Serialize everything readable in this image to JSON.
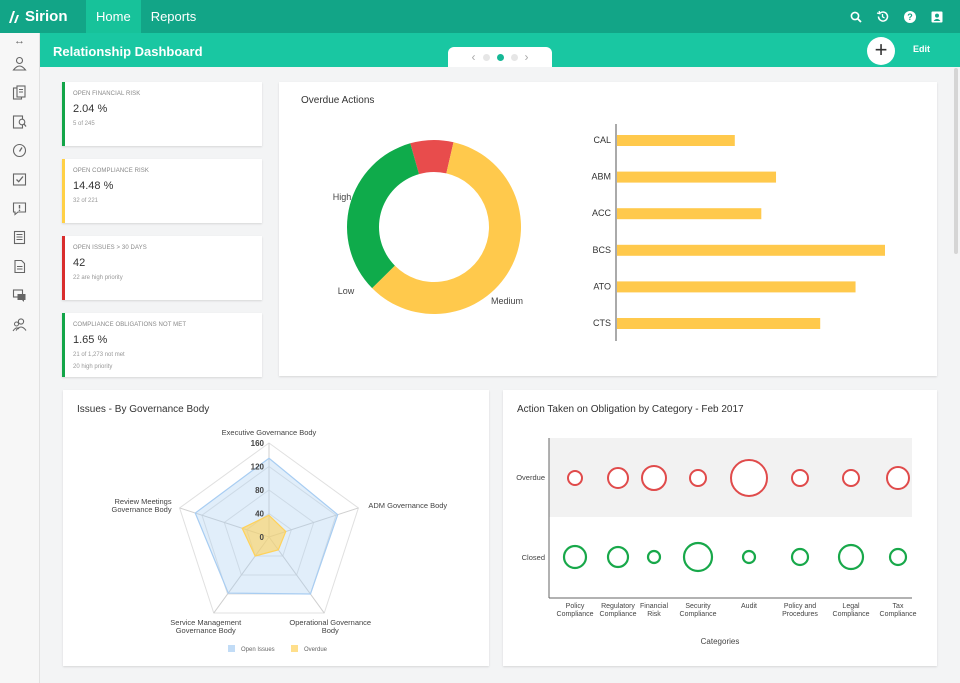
{
  "app": {
    "name": "Sirion"
  },
  "nav": {
    "tabs": [
      {
        "label": "Home"
      },
      {
        "label": "Reports"
      }
    ]
  },
  "header": {
    "title": "Relationship Dashboard",
    "edit_label": "Edit",
    "add_label": "+"
  },
  "topbar_icons": [
    "search-icon",
    "history-icon",
    "help-icon",
    "user-profile-icon"
  ],
  "sidebar_icons": [
    "user-icon",
    "contracts-icon",
    "search-document-icon",
    "speedometer-icon",
    "checklist-icon",
    "alert-icon",
    "invoice-icon",
    "document-icon",
    "chat-icon",
    "people-icon"
  ],
  "kpis": [
    {
      "label": "OPEN FINANCIAL RISK",
      "value": "2.04 %",
      "sub": "5 of 245",
      "sub2": "",
      "color": "#12a548"
    },
    {
      "label": "OPEN COMPLIANCE RISK",
      "value": "14.48 %",
      "sub": "32 of 221",
      "sub2": "",
      "color": "#ffd045"
    },
    {
      "label": "OPEN ISSUES > 30 DAYS",
      "value": "42",
      "sub": "22 are high priority",
      "sub2": "",
      "color": "#d92d2d"
    },
    {
      "label": "COMPLIANCE OBLIGATIONS NOT MET",
      "value": "1.65 %",
      "sub": "21 of 1,273 not met",
      "sub2": "20 high priority",
      "color": "#12a548"
    }
  ],
  "overdue": {
    "title": "Overdue Actions",
    "donut": {
      "labels": [
        "High",
        "Medium",
        "Low"
      ],
      "values": [
        8,
        59,
        33
      ],
      "colors": [
        "#e84c4c",
        "#ffc94c",
        "#0fab4b"
      ]
    },
    "bars": {
      "categories": [
        "CAL",
        "ABM",
        "ACC",
        "BCS",
        "ATO",
        "CTS"
      ],
      "values": [
        40,
        54,
        49,
        91,
        81,
        69
      ],
      "color": "#ffc94c"
    }
  },
  "governance": {
    "title": "Issues - By Governance Body",
    "axes": [
      "Executive Governance Body",
      "ADM Governance Body",
      "Operational Governance Body",
      "Service Management Governance Body",
      "Review Meetings Governance Body"
    ],
    "axis_lines": [
      [
        "Executive Governance Body"
      ],
      [
        "ADM Governance Body"
      ],
      [
        "Operational Governance",
        "Body"
      ],
      [
        "Service Management",
        "Governance Body"
      ],
      [
        "Review Meetings",
        "Governance Body"
      ]
    ],
    "ticks": [
      "0",
      "40",
      "80",
      "120",
      "160"
    ],
    "max": 160,
    "series": [
      {
        "name": "Open Issues",
        "values": [
          134,
          123,
          120,
          118,
          132
        ],
        "color": "#a8cdf2"
      },
      {
        "name": "Overdue",
        "values": [
          37,
          30,
          27,
          40,
          48
        ],
        "color": "#ffd25a"
      }
    ]
  },
  "obligation": {
    "title": "Action Taken on Obligation by Category - Feb 2017",
    "categories": [
      [
        "Policy",
        "Compliance"
      ],
      [
        "Regulatory",
        "Compliance"
      ],
      [
        "Financial",
        "Risk"
      ],
      [
        "Security",
        "Compliance"
      ],
      [
        "Audit"
      ],
      [
        "Policy and",
        "Procedures"
      ],
      [
        "Legal",
        "Compliance"
      ],
      [
        "Tax",
        "Compliance"
      ]
    ],
    "rows": [
      "Overdue",
      "Closed"
    ],
    "xlabel": "Categories",
    "overdue_sizes": [
      7,
      10,
      12,
      8,
      18,
      8,
      8,
      11
    ],
    "closed_sizes": [
      11,
      10,
      6,
      14,
      6,
      8,
      12,
      8
    ],
    "overdue_color": "#e04b4b",
    "closed_color": "#18a84a"
  }
}
